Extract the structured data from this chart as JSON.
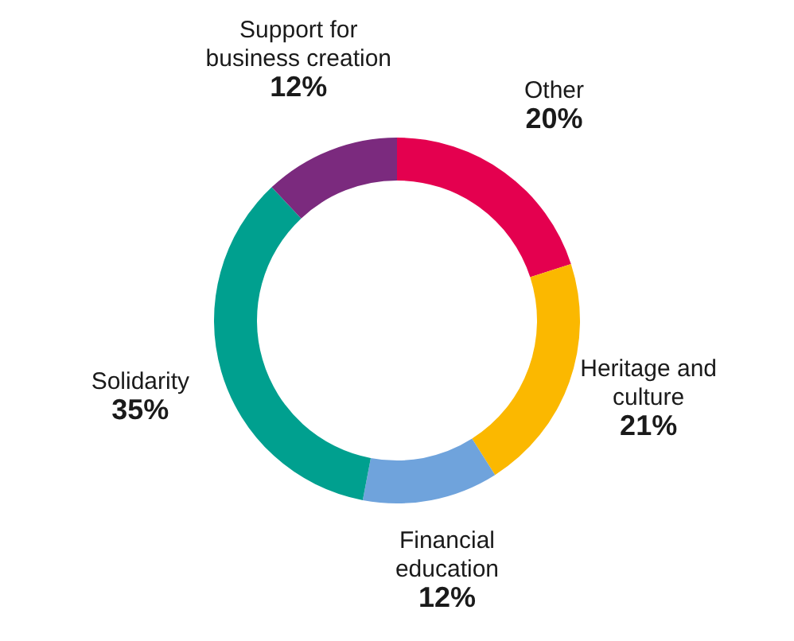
{
  "chart_data": {
    "type": "donut",
    "categories": [
      "Other",
      "Heritage and culture",
      "Financial education",
      "Solidarity",
      "Support for business creation"
    ],
    "values": [
      20,
      21,
      12,
      35,
      12
    ],
    "colors": [
      "#e4004f",
      "#fbb800",
      "#6fa3dc",
      "#00a08f",
      "#7b2a7e"
    ],
    "value_labels": [
      "20%",
      "21%",
      "12%",
      "35%",
      "12%"
    ]
  }
}
